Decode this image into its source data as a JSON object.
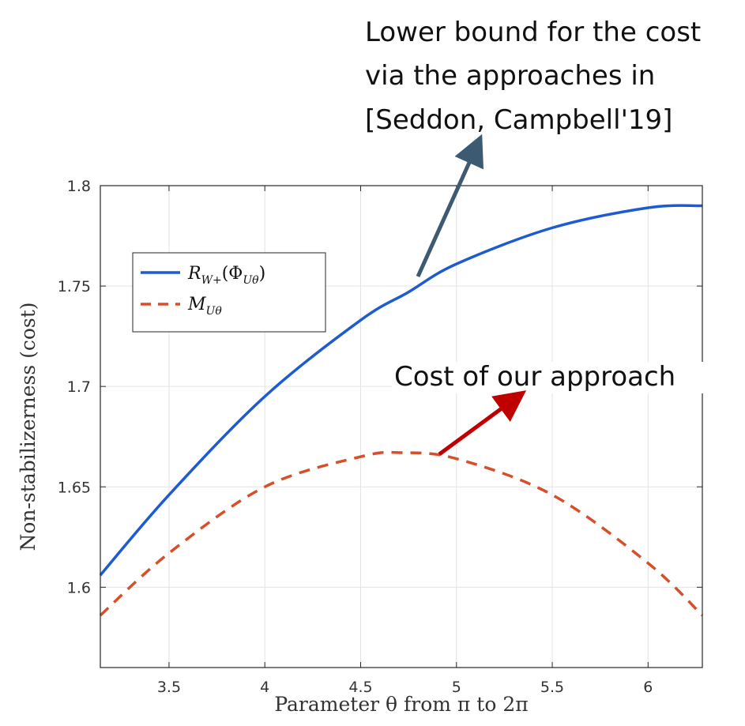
{
  "chart_data": {
    "type": "line",
    "xlabel": "Parameter θ from π to 2π",
    "ylabel": "Non-stabilizerness (cost)",
    "xlim": [
      3.14159,
      6.28319
    ],
    "ylim": [
      1.56,
      1.8
    ],
    "xticks": [
      3.5,
      4,
      4.5,
      5,
      5.5,
      6
    ],
    "xtick_labels": [
      "3.5",
      "4",
      "4.5",
      "5",
      "5.5",
      "6"
    ],
    "yticks": [
      1.6,
      1.65,
      1.7,
      1.75,
      1.8
    ],
    "ytick_labels": [
      "1.6",
      "1.65",
      "1.7",
      "1.75",
      "1.8"
    ],
    "grid": true,
    "legend_position": "upper-left",
    "series": [
      {
        "name": "R_{W+}(Φ_{Uθ})",
        "style": "solid",
        "color": "#1f5bd0",
        "x": [
          3.1416,
          3.5,
          4.0,
          4.5,
          4.75,
          5.0,
          5.5,
          6.0,
          6.2832
        ],
        "y": [
          1.606,
          1.646,
          1.695,
          1.733,
          1.747,
          1.761,
          1.779,
          1.789,
          1.79
        ]
      },
      {
        "name": "M_{Uθ}",
        "style": "dashed",
        "color": "#d5502a",
        "x": [
          3.1416,
          3.5,
          4.0,
          4.5,
          4.7124,
          5.0,
          5.5,
          6.0,
          6.2832
        ],
        "y": [
          1.586,
          1.617,
          1.65,
          1.665,
          1.667,
          1.664,
          1.646,
          1.612,
          1.586
        ]
      }
    ],
    "annotations": [
      {
        "lines": [
          "Lower bound for the cost",
          "via the approaches in",
          "[Seddon, Campbell'19]"
        ],
        "arrow_color": "#3d5a73"
      },
      {
        "lines": [
          "Cost of our approach"
        ],
        "arrow_color": "#c00000"
      }
    ]
  }
}
